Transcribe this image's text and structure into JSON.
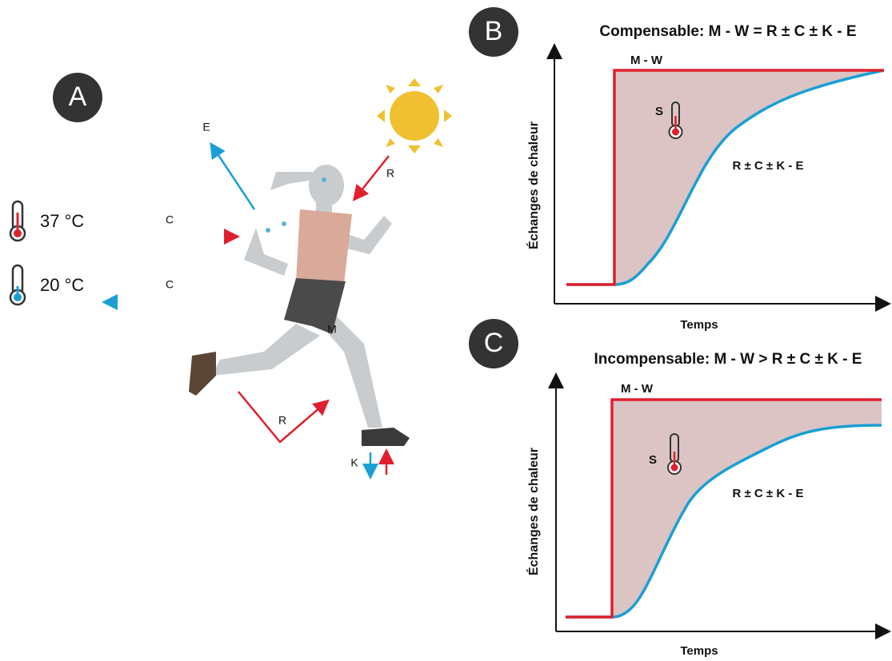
{
  "panel_a": {
    "label": "A",
    "temp_hot": "37 °C",
    "temp_cold": "20 °C",
    "arrow_e": "E",
    "arrow_c_in": "C",
    "arrow_c_out": "C",
    "arrow_r_sun": "R",
    "arrow_r_ground": "R",
    "metabolism": "M",
    "arrow_k": "K"
  },
  "panel_b": {
    "label": "B",
    "title": "Compensable: M - W = R ± C ± K - E",
    "curve_top": "M - W",
    "storage": "S",
    "curve_bottom": "R ± C ± K - E",
    "y_label": "Échanges de chaleur",
    "x_label": "Temps"
  },
  "panel_c": {
    "label": "C",
    "title": "Incompensable: M - W > R ± C ± K - E",
    "curve_top": "M - W",
    "storage": "S",
    "curve_bottom": "R ± C ± K - E",
    "y_label": "Échanges de chaleur",
    "x_label": "Temps"
  }
}
